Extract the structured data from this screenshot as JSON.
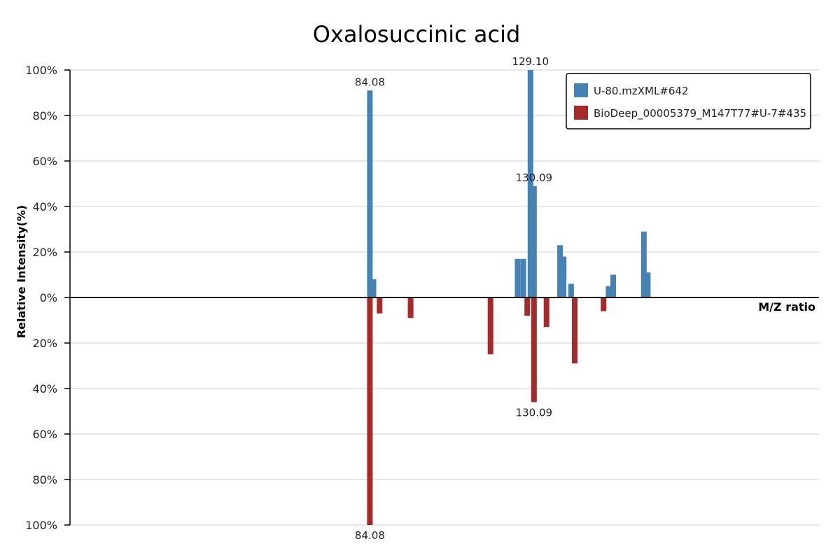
{
  "chart_data": {
    "type": "bar",
    "title": "Oxalosuccinic acid",
    "xlabel": "M/Z ratio",
    "ylabel": "Relative Intensity(%)",
    "y_ticks_top": [
      "100%",
      "80%",
      "60%",
      "40%",
      "20%",
      "0%"
    ],
    "y_ticks_bottom": [
      "20%",
      "40%",
      "60%",
      "80%",
      "100%"
    ],
    "ylim": [
      -100,
      100
    ],
    "xlim": [
      0,
      210
    ],
    "grid": true,
    "legend": "top-right",
    "series": [
      {
        "name": "U-80.mzXML#642",
        "color": "#4682b4",
        "direction": "up",
        "points": [
          {
            "mz": 84.08,
            "intensity": 91,
            "label": "84.08"
          },
          {
            "mz": 85.08,
            "intensity": 8
          },
          {
            "mz": 125.5,
            "intensity": 17
          },
          {
            "mz": 127.1,
            "intensity": 17
          },
          {
            "mz": 129.1,
            "intensity": 100,
            "label": "129.10"
          },
          {
            "mz": 130.09,
            "intensity": 49,
            "label": "130.09"
          },
          {
            "mz": 137.4,
            "intensity": 23
          },
          {
            "mz": 138.4,
            "intensity": 18
          },
          {
            "mz": 140.5,
            "intensity": 6
          },
          {
            "mz": 151.0,
            "intensity": 5
          },
          {
            "mz": 152.3,
            "intensity": 10
          },
          {
            "mz": 160.9,
            "intensity": 29
          },
          {
            "mz": 162.0,
            "intensity": 11
          }
        ]
      },
      {
        "name": "BioDeep_00005379_M147T77#U-7#435",
        "color": "#a52a2a",
        "direction": "down",
        "points": [
          {
            "mz": 84.08,
            "intensity": 100,
            "label": "84.08"
          },
          {
            "mz": 86.8,
            "intensity": 7
          },
          {
            "mz": 95.5,
            "intensity": 9
          },
          {
            "mz": 117.9,
            "intensity": 25
          },
          {
            "mz": 128.2,
            "intensity": 8
          },
          {
            "mz": 130.09,
            "intensity": 46,
            "label": "130.09"
          },
          {
            "mz": 133.6,
            "intensity": 13
          },
          {
            "mz": 141.5,
            "intensity": 29
          },
          {
            "mz": 149.6,
            "intensity": 6
          }
        ]
      }
    ]
  }
}
